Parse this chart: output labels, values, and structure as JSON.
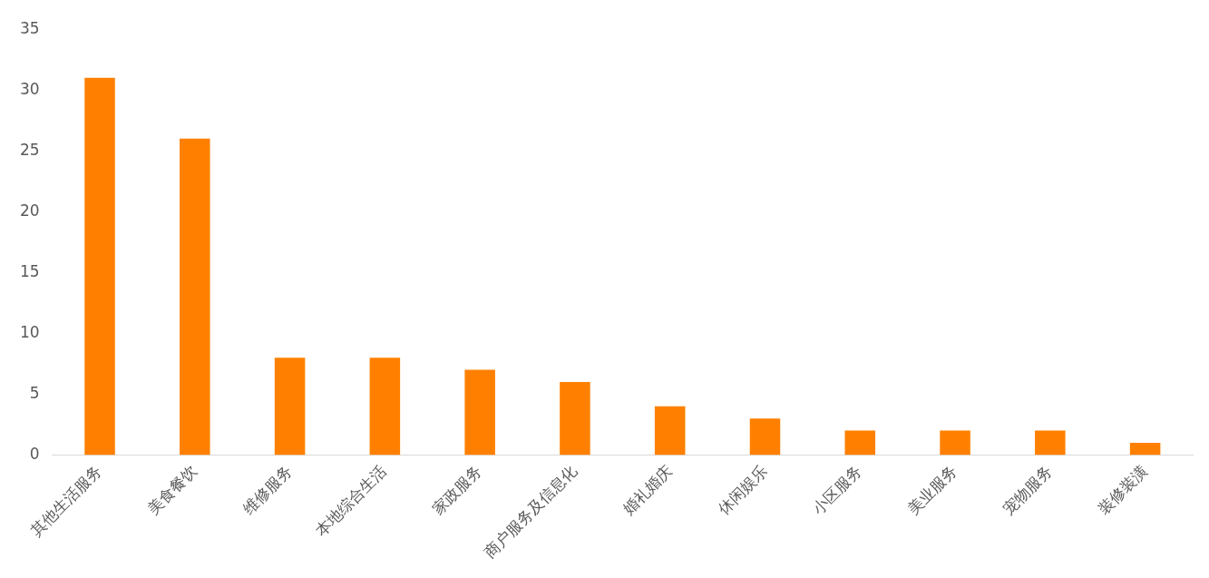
{
  "chart_data": {
    "type": "bar",
    "categories": [
      "其他生活服务",
      "美食餐饮",
      "维修服务",
      "本地综合生活",
      "家政服务",
      "商户服务及信息化",
      "婚礼婚庆",
      "休闲娱乐",
      "小区服务",
      "美业服务",
      "宠物服务",
      "装修装潢"
    ],
    "values": [
      31,
      26,
      8,
      8,
      7,
      6,
      4,
      3,
      2,
      2,
      2,
      1
    ],
    "color": "#ff8000",
    "ylim": [
      0,
      35
    ],
    "yticks": [
      0,
      5,
      10,
      15,
      20,
      25,
      30,
      35
    ],
    "grid": false,
    "legend": false
  }
}
